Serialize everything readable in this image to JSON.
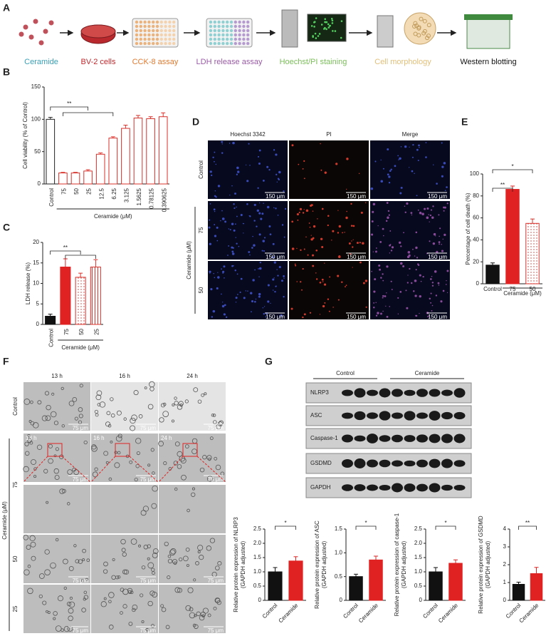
{
  "panel_labels": [
    "A",
    "B",
    "C",
    "D",
    "E",
    "F",
    "G"
  ],
  "workflow": {
    "steps": [
      "Ceramide",
      "BV-2 cells",
      "CCK-8 assay",
      "LDH release assay",
      "Hoechst/PI staining",
      "Cell morphology",
      "Western blotting"
    ]
  },
  "staining": {
    "columns": [
      "Hoechst 3342",
      "PI",
      "Merge"
    ],
    "rows": [
      "Control",
      "75",
      "50"
    ],
    "group_label": "Ceramide (μM)",
    "scale_bar": "150 μm"
  },
  "morphology": {
    "columns": [
      "13 h",
      "16 h",
      "24 h"
    ],
    "rows": [
      "Control",
      "75",
      "50",
      "25"
    ],
    "group_label": "Ceramide (μM)",
    "scale_bar": "75 μm"
  },
  "blot": {
    "groups": [
      "Control",
      "Ceramide"
    ],
    "proteins": [
      "NLRP3",
      "ASC",
      "Caspase-1",
      "GSDMD",
      "GAPDH"
    ]
  },
  "chart_data": [
    {
      "type": "bar",
      "ylabel": [
        "Cell viability (% of Control)"
      ],
      "xlabel": "Ceramide (μM)",
      "categories": [
        "Control",
        "75",
        "50",
        "25",
        "12.5",
        "6.25",
        "3.125",
        "1.5625",
        "0.78125",
        "0.390625"
      ],
      "values": [
        100,
        17,
        17,
        20,
        46,
        71,
        86,
        102,
        101,
        104
      ],
      "errors": [
        3,
        1,
        1,
        2,
        2,
        2,
        5,
        4,
        3,
        6
      ],
      "colors": [
        "#ffffff",
        "#ffffff",
        "#ffffff",
        "#ffffff",
        "#ffffff",
        "#ffffff",
        "#ffffff",
        "#ffffff",
        "#ffffff",
        "#ffffff"
      ],
      "edgecolors": [
        "#222222",
        "#d9312b",
        "#d9312b",
        "#d9312b",
        "#d9312b",
        "#d9312b",
        "#d9312b",
        "#d9312b",
        "#d9312b",
        "#d9312b"
      ],
      "ylim": [
        0,
        150
      ],
      "yticks": [
        0,
        50,
        100,
        150
      ],
      "annotations": [
        {
          "text": "**"
        }
      ]
    },
    {
      "type": "bar",
      "ylabel": [
        "LDH release (%)"
      ],
      "xlabel": "Ceramide (μM)",
      "categories": [
        "Control",
        "75",
        "50",
        "25"
      ],
      "values": [
        2,
        14,
        11.5,
        14
      ],
      "errors": [
        0.5,
        2,
        1,
        1.8
      ],
      "colors": [
        "#111111",
        "#e02222",
        "#ffffff",
        "#ffffff"
      ],
      "edgecolors": [
        "#111111",
        "#e02222",
        "#d9312b",
        "#d9312b"
      ],
      "hatches": [
        null,
        null,
        "dots",
        "stripes"
      ],
      "ylim": [
        0,
        20
      ],
      "yticks": [
        0,
        5,
        10,
        15,
        20
      ],
      "annotations": [
        {
          "text": "**"
        }
      ]
    },
    {
      "type": "bar",
      "ylabel": [
        "Percentage of cell death (%)"
      ],
      "xlabel": "Ceramide (μM)",
      "categories": [
        "Control",
        "75",
        "50"
      ],
      "values": [
        17,
        86,
        55
      ],
      "errors": [
        2,
        3,
        4
      ],
      "colors": [
        "#111111",
        "#e02222",
        "#ffffff"
      ],
      "edgecolors": [
        "#111111",
        "#e02222",
        "#d9312b"
      ],
      "hatches": [
        null,
        null,
        "dots"
      ],
      "ylim": [
        0,
        100
      ],
      "yticks": [
        0,
        20,
        40,
        60,
        80,
        100
      ],
      "annotations": [
        {
          "text": "**"
        },
        {
          "text": "*"
        }
      ]
    },
    {
      "type": "bar",
      "ylabel": [
        "Relative protein expression of NLRP3",
        "(GAPDH adjusted)"
      ],
      "categories": [
        "Control",
        "Ceramide"
      ],
      "values": [
        1.0,
        1.38
      ],
      "errors": [
        0.15,
        0.15
      ],
      "colors": [
        "#111111",
        "#e02222"
      ],
      "edgecolors": [
        "#111111",
        "#e02222"
      ],
      "ylim": [
        0,
        2.5
      ],
      "yticks": [
        0,
        0.5,
        {
          "value": 1,
          "label": "1.0"
        },
        1.5,
        {
          "value": 2,
          "label": "2.0"
        },
        2.5
      ],
      "annotations": [
        {
          "text": "*"
        }
      ]
    },
    {
      "type": "bar",
      "ylabel": [
        "Relative protein expression of ASC",
        "(GAPDH adjusted)"
      ],
      "categories": [
        "Control",
        "Ceramide"
      ],
      "values": [
        0.5,
        0.85
      ],
      "errors": [
        0.05,
        0.08
      ],
      "colors": [
        "#111111",
        "#e02222"
      ],
      "edgecolors": [
        "#111111",
        "#e02222"
      ],
      "ylim": [
        0,
        1.5
      ],
      "yticks": [
        0,
        0.5,
        {
          "value": 1,
          "label": "1.0"
        },
        1.5
      ],
      "annotations": [
        {
          "text": "*"
        }
      ]
    },
    {
      "type": "bar",
      "ylabel": [
        "Relative protein expression of caspase-1",
        "(GAPDH adjusted)"
      ],
      "categories": [
        "Control",
        "Ceramide"
      ],
      "values": [
        1.0,
        1.3
      ],
      "errors": [
        0.15,
        0.12
      ],
      "colors": [
        "#111111",
        "#e02222"
      ],
      "edgecolors": [
        "#111111",
        "#e02222"
      ],
      "ylim": [
        0,
        2.5
      ],
      "yticks": [
        0,
        0.5,
        {
          "value": 1,
          "label": "1.0"
        },
        1.5,
        {
          "value": 2,
          "label": "2.0"
        },
        2.5
      ],
      "annotations": [
        {
          "text": "*"
        }
      ]
    },
    {
      "type": "bar",
      "ylabel": [
        "Relative protein expression of GSDMD",
        "(GAPDH adjusted)"
      ],
      "categories": [
        "Control",
        "Ceramide"
      ],
      "values": [
        0.9,
        1.5
      ],
      "errors": [
        0.12,
        0.35
      ],
      "colors": [
        "#111111",
        "#e02222"
      ],
      "edgecolors": [
        "#111111",
        "#e02222"
      ],
      "ylim": [
        0,
        4
      ],
      "yticks": [
        0,
        1,
        2,
        3,
        4
      ],
      "annotations": [
        {
          "text": "**"
        }
      ]
    }
  ]
}
